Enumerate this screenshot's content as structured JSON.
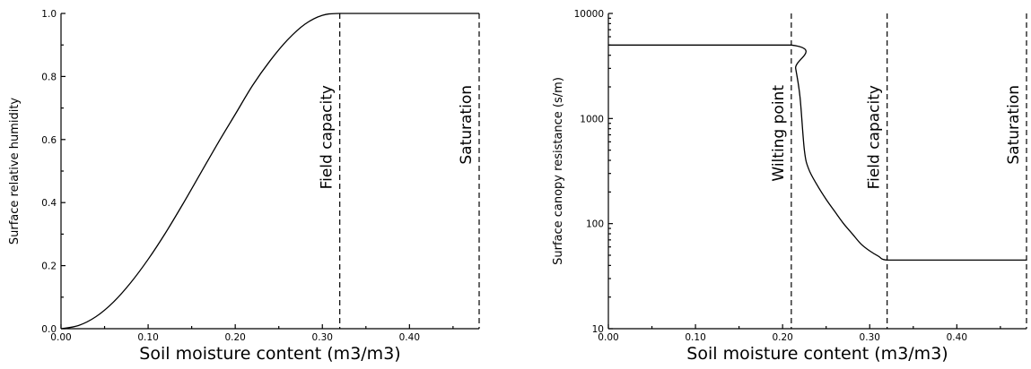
{
  "chart_data": [
    {
      "type": "line",
      "xlabel": "Soil moisture content (m3/m3)",
      "ylabel": "Surface relative humidity",
      "xlim": [
        0.0,
        0.48
      ],
      "ylim": [
        0.0,
        1.0
      ],
      "x_ticks": [
        0.0,
        0.1,
        0.2,
        0.3,
        0.4
      ],
      "x_tick_labels": [
        "0.00",
        "0.10",
        "0.20",
        "0.30",
        "0.40"
      ],
      "y_ticks": [
        0.0,
        0.2,
        0.4,
        0.6,
        0.8,
        1.0
      ],
      "y_tick_labels": [
        "0.0",
        "0.2",
        "0.4",
        "0.6",
        "0.8",
        "1.0"
      ],
      "series": [
        {
          "x": [
            0.0,
            0.02,
            0.04,
            0.06,
            0.08,
            0.1,
            0.12,
            0.14,
            0.16,
            0.18,
            0.2,
            0.22,
            0.24,
            0.26,
            0.28,
            0.3,
            0.32,
            0.36,
            0.4,
            0.44,
            0.48
          ],
          "y": [
            0.0,
            0.01,
            0.038,
            0.084,
            0.146,
            0.22,
            0.304,
            0.396,
            0.492,
            0.588,
            0.68,
            0.772,
            0.85,
            0.916,
            0.966,
            0.994,
            1.0,
            1.0,
            1.0,
            1.0,
            1.0
          ]
        }
      ],
      "reference_lines": [
        {
          "x": 0.32,
          "label": "Field capacity"
        },
        {
          "x": 0.48,
          "label": "Saturation"
        }
      ]
    },
    {
      "type": "line",
      "xlabel": "Soil moisture content (m3/m3)",
      "ylabel": "Surface canopy resistance (s/m)",
      "log_y": true,
      "xlim": [
        0.0,
        0.48
      ],
      "ylim": [
        10,
        10000
      ],
      "x_ticks": [
        0.0,
        0.1,
        0.2,
        0.3,
        0.4
      ],
      "x_tick_labels": [
        "0.00",
        "0.10",
        "0.20",
        "0.30",
        "0.40"
      ],
      "y_ticks": [
        10,
        100,
        1000,
        10000
      ],
      "y_tick_labels": [
        "10",
        "100",
        "1000",
        "10000"
      ],
      "series": [
        {
          "x": [
            0.0,
            0.21,
            0.215,
            0.22,
            0.225,
            0.23,
            0.24,
            0.25,
            0.26,
            0.27,
            0.28,
            0.29,
            0.3,
            0.31,
            0.32,
            0.36,
            0.4,
            0.44,
            0.48
          ],
          "y": [
            5000,
            5000,
            3000,
            1600,
            500,
            330,
            230,
            170,
            130,
            100,
            80,
            64,
            55,
            49,
            45,
            45,
            45,
            45,
            45
          ]
        }
      ],
      "reference_lines": [
        {
          "x": 0.21,
          "label": "Wilting point"
        },
        {
          "x": 0.32,
          "label": "Field capacity"
        },
        {
          "x": 0.48,
          "label": "Saturation"
        }
      ]
    }
  ]
}
